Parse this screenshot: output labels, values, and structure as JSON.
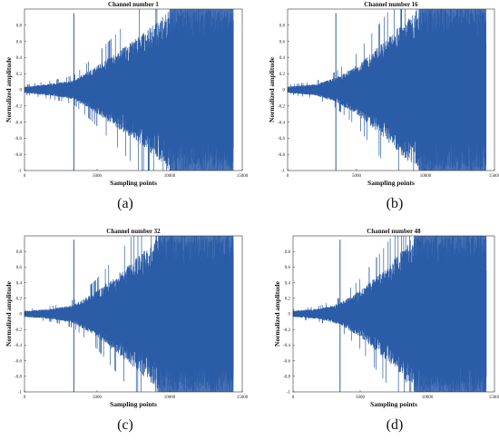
{
  "chart_data": [
    {
      "type": "line",
      "title": "Channel number 1",
      "xlabel": "Sampling points",
      "ylabel": "Normalized amplitude",
      "caption": "(a)",
      "xlim": [
        0,
        15000
      ],
      "ylim": [
        -1,
        1
      ],
      "xticks": [
        "0",
        "5000",
        "10000",
        "15000"
      ],
      "yticks": [
        "-1",
        "-0.8",
        "-0.6",
        "-0.4",
        "-0.2",
        "0",
        "0.2",
        "0.4",
        "0.6",
        "0.8"
      ],
      "data_length": 14400,
      "spike_x": 3400,
      "saturation_x": 10000,
      "envelope": [
        [
          0,
          0.04
        ],
        [
          2000,
          0.08
        ],
        [
          3400,
          0.12
        ],
        [
          5000,
          0.3
        ],
        [
          7000,
          0.55
        ],
        [
          8500,
          0.75
        ],
        [
          10000,
          1.0
        ],
        [
          14400,
          1.0
        ]
      ],
      "line_color": "#2a5ca8",
      "grid": false
    },
    {
      "type": "line",
      "title": "Channel number 16",
      "xlabel": "Sampling points",
      "ylabel": "Normalized amplitude",
      "caption": "(b)",
      "xlim": [
        0,
        15000
      ],
      "ylim": [
        -1,
        1
      ],
      "xticks": [
        "0",
        "5000",
        "10000",
        "15000"
      ],
      "yticks": [
        "-1",
        "-0.8",
        "-0.6",
        "-0.4",
        "-0.2",
        "0",
        "0.2",
        "0.4",
        "0.6",
        "0.8"
      ],
      "data_length": 14400,
      "spike_x": 3500,
      "saturation_x": 9500,
      "envelope": [
        [
          0,
          0.04
        ],
        [
          2000,
          0.07
        ],
        [
          3500,
          0.15
        ],
        [
          5000,
          0.3
        ],
        [
          7000,
          0.6
        ],
        [
          8500,
          0.85
        ],
        [
          9500,
          1.0
        ],
        [
          14400,
          1.0
        ]
      ],
      "line_color": "#2a5ca8",
      "grid": false
    },
    {
      "type": "line",
      "title": "Channel number 32",
      "xlabel": "Sampling points",
      "ylabel": "Normalized amplitude",
      "caption": "(c)",
      "xlim": [
        0,
        15000
      ],
      "ylim": [
        -1,
        1
      ],
      "xticks": [
        "0",
        "5000",
        "10000",
        "15000"
      ],
      "yticks": [
        "-1",
        "-0.8",
        "-0.6",
        "-0.4",
        "-0.2",
        "0",
        "0.2",
        "0.4",
        "0.6",
        "0.8"
      ],
      "data_length": 14400,
      "spike_x": 3400,
      "saturation_x": 9200,
      "envelope": [
        [
          0,
          0.04
        ],
        [
          2000,
          0.07
        ],
        [
          3400,
          0.12
        ],
        [
          5000,
          0.3
        ],
        [
          7000,
          0.6
        ],
        [
          8500,
          0.85
        ],
        [
          9200,
          1.0
        ],
        [
          14400,
          1.0
        ]
      ],
      "line_color": "#2a5ca8",
      "grid": false
    },
    {
      "type": "line",
      "title": "Channel number 48",
      "xlabel": "Sampling points",
      "ylabel": "Normalized amplitude",
      "caption": "(d)",
      "xlim": [
        0,
        15000
      ],
      "ylim": [
        -1,
        1
      ],
      "xticks": [
        "0",
        "5000",
        "10000",
        "15000"
      ],
      "yticks": [
        "-1",
        "-0.8",
        "-0.6",
        "-0.4",
        "-0.2",
        "0",
        "0.2",
        "0.4",
        "0.6",
        "0.8"
      ],
      "data_length": 14400,
      "spike_x": 3500,
      "saturation_x": 9000,
      "envelope": [
        [
          0,
          0.04
        ],
        [
          2000,
          0.07
        ],
        [
          3500,
          0.14
        ],
        [
          5000,
          0.3
        ],
        [
          7000,
          0.6
        ],
        [
          8500,
          0.9
        ],
        [
          9000,
          1.0
        ],
        [
          14400,
          1.0
        ]
      ],
      "line_color": "#2a5ca8",
      "grid": false
    }
  ]
}
